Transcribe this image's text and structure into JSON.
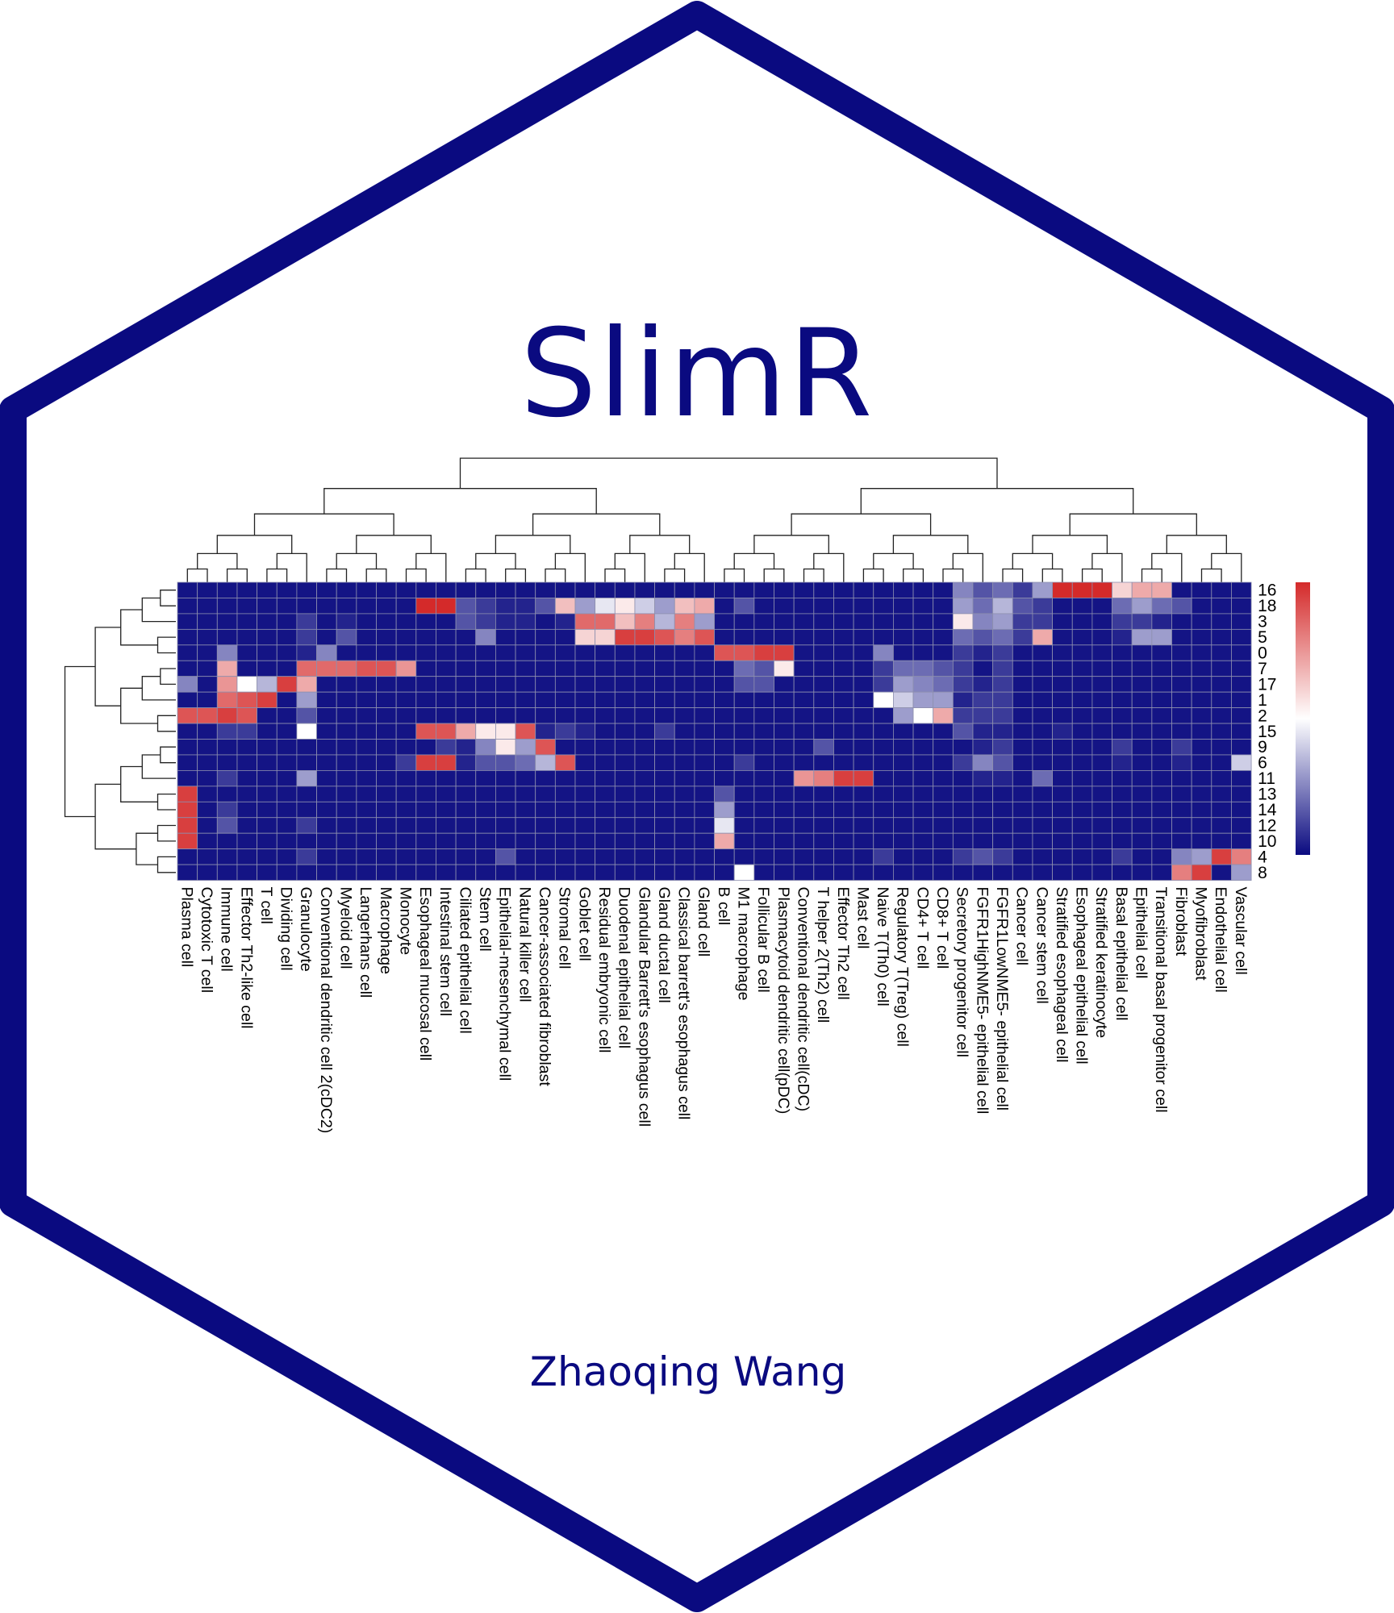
{
  "logo": {
    "title": "SlimR",
    "author": "Zhaoqing Wang",
    "colors": {
      "frame": "#0a0a80",
      "text": "#0a0a80",
      "background": "#ffffff"
    }
  },
  "chart_data": {
    "type": "heatmap",
    "title": "",
    "xlabel": "",
    "ylabel": "",
    "dendrograms": {
      "rows": true,
      "columns": true
    },
    "color_scale": {
      "low": "#0a0a80",
      "mid": "#ffffff",
      "high": "#d42a2a",
      "range": [
        0,
        1
      ],
      "legend": "right"
    },
    "grid": true,
    "rows": [
      "16",
      "18",
      "3",
      "5",
      "0",
      "7",
      "17",
      "1",
      "2",
      "15",
      "9",
      "6",
      "11",
      "13",
      "14",
      "12",
      "10",
      "4",
      "8"
    ],
    "columns": [
      "Plasma cell",
      "Cytotoxic T cell",
      "Immune cell",
      "Effector Th2-like cell",
      "T cell",
      "Dividing cell",
      "Granulocyte",
      "Conventional dendritic cell 2(cDC2)",
      "Myeloid cell",
      "Langerhans cell",
      "Macrophage",
      "Monocyte",
      "Esophageal mucosal cell",
      "Intestinal stem cell",
      "Ciliated epithelial cell",
      "Stem cell",
      "Epithelial-mesenchymal cell",
      "Natural killer cell",
      "Cancer-associated fibroblast",
      "Stromal cell",
      "Goblet cell",
      "Residual embryonic cell",
      "Duodenal epithelial cell",
      "Glandular Barrett's esophagus cell",
      "Gland ductal cell",
      "Classical barrett's esophagus cell",
      "Gland cell",
      "B cell",
      "M1 macrophage",
      "Follicular B cell",
      "Plasmacytoid dendritic cell(pDC)",
      "Conventional dendritic cell(cDC)",
      "T helper 2(Th2) cell",
      "Effector Th2 cell",
      "Mast cell",
      "Naive T(Th0) cell",
      "Regulatory T(Treg) cell",
      "CD4+ T cell",
      "CD8+ T cell",
      "Secretory progenitor cell",
      "FGFR1HighNME5- epithelial cell",
      "FGFR1LowNME5- epithelial cell",
      "Cancer cell",
      "Cancer stem cell",
      "Stratified esophageal cell",
      "Esophageal epithelial cell",
      "Stratified keratinocyte",
      "Basal epithelial cell",
      "Epithelial cell",
      "Transitional basal progenitor cell",
      "Fibroblast",
      "Myofibroblast",
      "Endothelial cell",
      "Vascular cell"
    ],
    "values": [
      [
        0.02,
        0.02,
        0.02,
        0.02,
        0.02,
        0.02,
        0.02,
        0.02,
        0.02,
        0.02,
        0.02,
        0.02,
        0.02,
        0.02,
        0.02,
        0.02,
        0.02,
        0.02,
        0.02,
        0.02,
        0.02,
        0.02,
        0.02,
        0.02,
        0.02,
        0.02,
        0.02,
        0.02,
        0.02,
        0.02,
        0.02,
        0.02,
        0.02,
        0.02,
        0.02,
        0.02,
        0.02,
        0.02,
        0.02,
        0.25,
        0.15,
        0.2,
        0.1,
        0.3,
        1,
        1,
        1,
        0.6,
        0.7,
        0.7,
        0.02,
        0.02,
        0.02,
        0.02
      ],
      [
        0.02,
        0.02,
        0.02,
        0.02,
        0.02,
        0.02,
        0.02,
        0.02,
        0.02,
        0.02,
        0.02,
        0.02,
        1,
        1,
        0.15,
        0.1,
        0.05,
        0.05,
        0.15,
        0.65,
        0.3,
        0.45,
        0.55,
        0.4,
        0.3,
        0.65,
        0.7,
        0.02,
        0.15,
        0.02,
        0.02,
        0.02,
        0.02,
        0.02,
        0.02,
        0.02,
        0.02,
        0.02,
        0.02,
        0.3,
        0.2,
        0.35,
        0.15,
        0.1,
        0.02,
        0.02,
        0.02,
        0.2,
        0.3,
        0.2,
        0.15,
        0.02,
        0.02,
        0.02
      ],
      [
        0.02,
        0.02,
        0.02,
        0.02,
        0.02,
        0.02,
        0.1,
        0.02,
        0.05,
        0.02,
        0.02,
        0.02,
        0.02,
        0.02,
        0.15,
        0.1,
        0.05,
        0.05,
        0.02,
        0.05,
        0.85,
        0.85,
        0.65,
        0.8,
        0.35,
        0.8,
        0.3,
        0.02,
        0.02,
        0.02,
        0.02,
        0.02,
        0.02,
        0.02,
        0.02,
        0.02,
        0.02,
        0.02,
        0.02,
        0.55,
        0.25,
        0.3,
        0.1,
        0.1,
        0.02,
        0.02,
        0.02,
        0.1,
        0.1,
        0.05,
        0.02,
        0.02,
        0.02,
        0.02
      ],
      [
        0.02,
        0.02,
        0.02,
        0.02,
        0.02,
        0.02,
        0.1,
        0.02,
        0.15,
        0.02,
        0.02,
        0.02,
        0.02,
        0.02,
        0.02,
        0.25,
        0.02,
        0.02,
        0.02,
        0.02,
        0.6,
        0.6,
        0.95,
        0.95,
        0.9,
        0.8,
        0.9,
        0.02,
        0.02,
        0.02,
        0.02,
        0.02,
        0.02,
        0.02,
        0.02,
        0.02,
        0.02,
        0.02,
        0.02,
        0.2,
        0.15,
        0.2,
        0.1,
        0.7,
        0.02,
        0.02,
        0.02,
        0.05,
        0.3,
        0.3,
        0.02,
        0.02,
        0.02,
        0.02
      ],
      [
        0.02,
        0.02,
        0.25,
        0.02,
        0.02,
        0.02,
        0.05,
        0.25,
        0.02,
        0.02,
        0.02,
        0.02,
        0.02,
        0.02,
        0.02,
        0.02,
        0.02,
        0.02,
        0.02,
        0.02,
        0.02,
        0.02,
        0.02,
        0.02,
        0.02,
        0.02,
        0.02,
        0.9,
        0.9,
        0.95,
        0.95,
        0.02,
        0.02,
        0.02,
        0.02,
        0.25,
        0.02,
        0.02,
        0.02,
        0.1,
        0.05,
        0.1,
        0.02,
        0.02,
        0.02,
        0.02,
        0.02,
        0.02,
        0.02,
        0.02,
        0.02,
        0.02,
        0.02,
        0.02
      ],
      [
        0.02,
        0.02,
        0.7,
        0.02,
        0.02,
        0.02,
        0.85,
        0.85,
        0.85,
        0.9,
        0.9,
        0.75,
        0.02,
        0.02,
        0.02,
        0.02,
        0.02,
        0.02,
        0.02,
        0.02,
        0.02,
        0.02,
        0.02,
        0.02,
        0.02,
        0.02,
        0.02,
        0.02,
        0.2,
        0.15,
        0.55,
        0.02,
        0.02,
        0.02,
        0.02,
        0.1,
        0.2,
        0.2,
        0.15,
        0.1,
        0.02,
        0.1,
        0.02,
        0.02,
        0.02,
        0.02,
        0.02,
        0.02,
        0.02,
        0.02,
        0.02,
        0.02,
        0.02,
        0.02
      ],
      [
        0.25,
        0.02,
        0.75,
        0.5,
        0.35,
        0.95,
        0.7,
        0.02,
        0.02,
        0.02,
        0.02,
        0.02,
        0.02,
        0.02,
        0.02,
        0.02,
        0.02,
        0.02,
        0.02,
        0.02,
        0.02,
        0.02,
        0.02,
        0.02,
        0.02,
        0.02,
        0.02,
        0.02,
        0.15,
        0.15,
        0.02,
        0.02,
        0.02,
        0.02,
        0.02,
        0.1,
        0.3,
        0.25,
        0.2,
        0.1,
        0.05,
        0.1,
        0.02,
        0.02,
        0.02,
        0.02,
        0.02,
        0.02,
        0.02,
        0.02,
        0.02,
        0.02,
        0.02,
        0.02
      ],
      [
        0.02,
        0.02,
        0.85,
        0.9,
        0.95,
        0.02,
        0.3,
        0.02,
        0.02,
        0.02,
        0.02,
        0.02,
        0.02,
        0.02,
        0.02,
        0.02,
        0.02,
        0.02,
        0.02,
        0.02,
        0.02,
        0.02,
        0.02,
        0.02,
        0.02,
        0.02,
        0.02,
        0.02,
        0.02,
        0.02,
        0.02,
        0.02,
        0.02,
        0.02,
        0.02,
        0.5,
        0.4,
        0.3,
        0.3,
        0.05,
        0.1,
        0.1,
        0.02,
        0.02,
        0.02,
        0.02,
        0.02,
        0.02,
        0.02,
        0.02,
        0.02,
        0.02,
        0.02,
        0.02
      ],
      [
        0.9,
        0.9,
        0.95,
        0.9,
        0.02,
        0.02,
        0.15,
        0.02,
        0.02,
        0.02,
        0.02,
        0.02,
        0.02,
        0.02,
        0.02,
        0.02,
        0.02,
        0.02,
        0.02,
        0.02,
        0.02,
        0.02,
        0.02,
        0.02,
        0.02,
        0.02,
        0.02,
        0.02,
        0.02,
        0.02,
        0.02,
        0.02,
        0.02,
        0.02,
        0.02,
        0.02,
        0.3,
        0.5,
        0.7,
        0.1,
        0.1,
        0.1,
        0.02,
        0.02,
        0.02,
        0.02,
        0.02,
        0.02,
        0.02,
        0.02,
        0.02,
        0.02,
        0.02,
        0.02
      ],
      [
        0.02,
        0.02,
        0.1,
        0.1,
        0.02,
        0.02,
        0.5,
        0.02,
        0.02,
        0.02,
        0.02,
        0.02,
        0.9,
        0.9,
        0.7,
        0.55,
        0.55,
        0.9,
        0.05,
        0.1,
        0.05,
        0.02,
        0.02,
        0.02,
        0.1,
        0.02,
        0.02,
        0.02,
        0.02,
        0.02,
        0.02,
        0.02,
        0.02,
        0.02,
        0.02,
        0.02,
        0.02,
        0.02,
        0.02,
        0.15,
        0.05,
        0.05,
        0.02,
        0.02,
        0.05,
        0.02,
        0.02,
        0.02,
        0.02,
        0.02,
        0.02,
        0.02,
        0.02,
        0.02
      ],
      [
        0.02,
        0.02,
        0.02,
        0.02,
        0.02,
        0.02,
        0.02,
        0.02,
        0.02,
        0.02,
        0.02,
        0.02,
        0.02,
        0.1,
        0.05,
        0.25,
        0.55,
        0.3,
        0.9,
        0.02,
        0.02,
        0.02,
        0.02,
        0.02,
        0.02,
        0.02,
        0.02,
        0.02,
        0.02,
        0.02,
        0.02,
        0.02,
        0.15,
        0.02,
        0.02,
        0.02,
        0.02,
        0.02,
        0.02,
        0.02,
        0.05,
        0.1,
        0.02,
        0.02,
        0.02,
        0.02,
        0.02,
        0.1,
        0.02,
        0.02,
        0.1,
        0.02,
        0.02,
        0.02
      ],
      [
        0.02,
        0.02,
        0.02,
        0.02,
        0.02,
        0.02,
        0.02,
        0.02,
        0.02,
        0.02,
        0.02,
        0.1,
        0.95,
        0.95,
        0.05,
        0.15,
        0.15,
        0.2,
        0.35,
        0.9,
        0.02,
        0.02,
        0.02,
        0.02,
        0.02,
        0.02,
        0.02,
        0.02,
        0.1,
        0.02,
        0.02,
        0.02,
        0.02,
        0.02,
        0.02,
        0.02,
        0.02,
        0.02,
        0.02,
        0.1,
        0.25,
        0.15,
        0.02,
        0.02,
        0.02,
        0.02,
        0.02,
        0.05,
        0.02,
        0.02,
        0.05,
        0.02,
        0.02,
        0.4
      ],
      [
        0.02,
        0.02,
        0.1,
        0.02,
        0.02,
        0.02,
        0.3,
        0.02,
        0.02,
        0.02,
        0.02,
        0.02,
        0.02,
        0.02,
        0.02,
        0.02,
        0.02,
        0.02,
        0.02,
        0.02,
        0.02,
        0.02,
        0.02,
        0.02,
        0.02,
        0.02,
        0.02,
        0.02,
        0.02,
        0.02,
        0.02,
        0.75,
        0.8,
        0.95,
        0.95,
        0.02,
        0.02,
        0.02,
        0.02,
        0.02,
        0.05,
        0.05,
        0.02,
        0.2,
        0.02,
        0.02,
        0.02,
        0.02,
        0.02,
        0.02,
        0.02,
        0.02,
        0.02,
        0.02
      ],
      [
        0.95,
        0.02,
        0.02,
        0.02,
        0.02,
        0.02,
        0.02,
        0.02,
        0.02,
        0.02,
        0.02,
        0.02,
        0.02,
        0.02,
        0.02,
        0.02,
        0.02,
        0.02,
        0.02,
        0.02,
        0.02,
        0.02,
        0.02,
        0.02,
        0.02,
        0.02,
        0.02,
        0.15,
        0.02,
        0.02,
        0.02,
        0.02,
        0.02,
        0.02,
        0.02,
        0.02,
        0.02,
        0.02,
        0.02,
        0.02,
        0.02,
        0.02,
        0.02,
        0.02,
        0.02,
        0.02,
        0.02,
        0.02,
        0.02,
        0.02,
        0.02,
        0.02,
        0.02,
        0.02
      ],
      [
        0.95,
        0.02,
        0.1,
        0.02,
        0.02,
        0.02,
        0.02,
        0.02,
        0.02,
        0.02,
        0.02,
        0.02,
        0.02,
        0.02,
        0.02,
        0.02,
        0.02,
        0.02,
        0.02,
        0.02,
        0.02,
        0.02,
        0.02,
        0.02,
        0.02,
        0.02,
        0.02,
        0.3,
        0.02,
        0.02,
        0.02,
        0.02,
        0.02,
        0.02,
        0.02,
        0.02,
        0.02,
        0.02,
        0.02,
        0.02,
        0.02,
        0.02,
        0.02,
        0.02,
        0.02,
        0.02,
        0.02,
        0.02,
        0.02,
        0.02,
        0.02,
        0.02,
        0.02,
        0.02
      ],
      [
        0.95,
        0.02,
        0.15,
        0.02,
        0.02,
        0.02,
        0.1,
        0.02,
        0.02,
        0.02,
        0.02,
        0.02,
        0.02,
        0.02,
        0.02,
        0.02,
        0.02,
        0.02,
        0.02,
        0.02,
        0.02,
        0.02,
        0.02,
        0.02,
        0.02,
        0.02,
        0.02,
        0.45,
        0.02,
        0.02,
        0.02,
        0.02,
        0.02,
        0.02,
        0.02,
        0.02,
        0.02,
        0.02,
        0.02,
        0.02,
        0.02,
        0.02,
        0.02,
        0.02,
        0.02,
        0.02,
        0.02,
        0.02,
        0.02,
        0.02,
        0.02,
        0.02,
        0.02,
        0.02
      ],
      [
        0.95,
        0.02,
        0.02,
        0.02,
        0.02,
        0.02,
        0.02,
        0.02,
        0.02,
        0.02,
        0.02,
        0.02,
        0.02,
        0.02,
        0.02,
        0.02,
        0.02,
        0.02,
        0.02,
        0.02,
        0.02,
        0.02,
        0.02,
        0.02,
        0.02,
        0.02,
        0.02,
        0.7,
        0.02,
        0.02,
        0.02,
        0.02,
        0.02,
        0.02,
        0.02,
        0.02,
        0.02,
        0.02,
        0.02,
        0.02,
        0.02,
        0.02,
        0.02,
        0.02,
        0.02,
        0.02,
        0.02,
        0.02,
        0.02,
        0.02,
        0.02,
        0.02,
        0.02,
        0.02
      ],
      [
        0.02,
        0.02,
        0.02,
        0.02,
        0.02,
        0.02,
        0.1,
        0.02,
        0.02,
        0.02,
        0.02,
        0.02,
        0.02,
        0.02,
        0.02,
        0.02,
        0.15,
        0.02,
        0.02,
        0.02,
        0.02,
        0.02,
        0.02,
        0.02,
        0.02,
        0.02,
        0.02,
        0.02,
        0.02,
        0.02,
        0.02,
        0.02,
        0.02,
        0.02,
        0.02,
        0.1,
        0.02,
        0.02,
        0.02,
        0.1,
        0.15,
        0.1,
        0.02,
        0.02,
        0.02,
        0.02,
        0.02,
        0.1,
        0.02,
        0.02,
        0.25,
        0.3,
        0.95,
        0.8
      ],
      [
        0.02,
        0.02,
        0.02,
        0.02,
        0.02,
        0.02,
        0.02,
        0.02,
        0.02,
        0.02,
        0.02,
        0.02,
        0.02,
        0.02,
        0.02,
        0.02,
        0.02,
        0.02,
        0.02,
        0.02,
        0.02,
        0.02,
        0.02,
        0.02,
        0.02,
        0.02,
        0.02,
        0.02,
        0.5,
        0.02,
        0.02,
        0.02,
        0.02,
        0.02,
        0.02,
        0.02,
        0.02,
        0.02,
        0.02,
        0.02,
        0.02,
        0.02,
        0.02,
        0.02,
        0.02,
        0.02,
        0.02,
        0.02,
        0.02,
        0.02,
        0.8,
        0.95,
        0.02,
        0.3
      ]
    ]
  }
}
